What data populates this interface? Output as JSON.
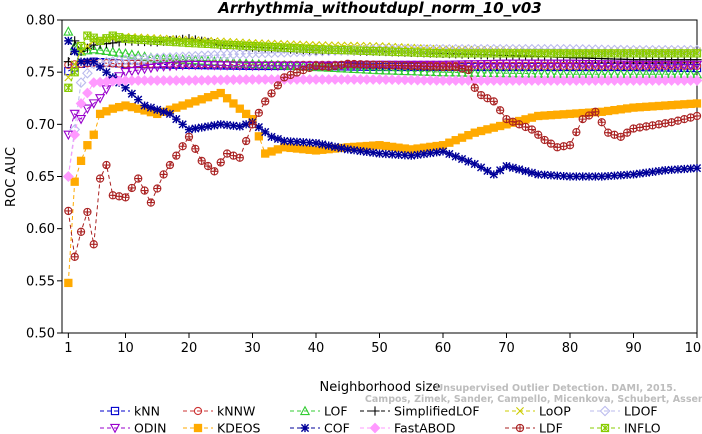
{
  "chart_data": {
    "type": "line",
    "title": "Arrhythmia_withoutdupl_norm_10_v03",
    "xlabel": "Neighborhood size",
    "ylabel": "ROC AUC",
    "xlim": [
      0,
      100
    ],
    "ylim": [
      0.5,
      0.8
    ],
    "xticks": [
      1,
      10,
      20,
      30,
      40,
      50,
      60,
      70,
      80,
      90,
      100
    ],
    "yticks": [
      0.5,
      0.55,
      0.6,
      0.65,
      0.7,
      0.75,
      0.8
    ],
    "ytick_labels": [
      "0.50",
      "0.55",
      "0.60",
      "0.65",
      "0.70",
      "0.75",
      "0.80"
    ],
    "legend_position": "bottom",
    "watermark": [
      "Unsupervised Outlier Detection. DAMI, 2015.",
      "Campos, Zimek, Sander, Campello, Micenkova, Schubert, Assent, Houle"
    ],
    "series": [
      {
        "name": "kNN",
        "color": "#0000cc",
        "marker": "square",
        "x": [
          1,
          3,
          5,
          10,
          20,
          30,
          40,
          50,
          60,
          70,
          80,
          90,
          100
        ],
        "y": [
          0.751,
          0.758,
          0.76,
          0.758,
          0.757,
          0.756,
          0.756,
          0.755,
          0.755,
          0.755,
          0.755,
          0.755,
          0.754
        ]
      },
      {
        "name": "kNNW",
        "color": "#cc3333",
        "marker": "circle",
        "x": [
          1,
          3,
          5,
          10,
          20,
          30,
          40,
          50,
          60,
          70,
          80,
          90,
          100
        ],
        "y": [
          0.757,
          0.758,
          0.759,
          0.758,
          0.758,
          0.757,
          0.757,
          0.757,
          0.756,
          0.756,
          0.756,
          0.756,
          0.756
        ]
      },
      {
        "name": "LOF",
        "color": "#33cc33",
        "marker": "triangle",
        "x": [
          1,
          2,
          3,
          5,
          10,
          15,
          20,
          30,
          40,
          50,
          60,
          70,
          80,
          90,
          100
        ],
        "y": [
          0.789,
          0.775,
          0.77,
          0.772,
          0.768,
          0.763,
          0.762,
          0.758,
          0.755,
          0.752,
          0.75,
          0.749,
          0.748,
          0.748,
          0.748
        ]
      },
      {
        "name": "SimplifiedLOF",
        "color": "#000000",
        "marker": "plus",
        "x": [
          1,
          2,
          3,
          5,
          8,
          10,
          15,
          20,
          25,
          30,
          40,
          50,
          60,
          70,
          80,
          90,
          100
        ],
        "y": [
          0.76,
          0.78,
          0.77,
          0.776,
          0.778,
          0.78,
          0.779,
          0.782,
          0.776,
          0.774,
          0.771,
          0.77,
          0.768,
          0.766,
          0.764,
          0.762,
          0.762
        ]
      },
      {
        "name": "LoOP",
        "color": "#cccc00",
        "marker": "x",
        "x": [
          1,
          3,
          5,
          10,
          20,
          30,
          40,
          50,
          60,
          70,
          80,
          90,
          100
        ],
        "y": [
          0.745,
          0.77,
          0.78,
          0.784,
          0.781,
          0.778,
          0.776,
          0.775,
          0.772,
          0.771,
          0.77,
          0.77,
          0.77
        ]
      },
      {
        "name": "LDOF",
        "color": "#bbbbee",
        "marker": "diamond",
        "x": [
          1,
          3,
          5,
          10,
          20,
          30,
          40,
          50,
          60,
          70,
          80,
          90,
          100
        ],
        "y": [
          0.65,
          0.74,
          0.758,
          0.762,
          0.765,
          0.768,
          0.77,
          0.772,
          0.772,
          0.772,
          0.772,
          0.771,
          0.771
        ]
      },
      {
        "name": "ODIN",
        "color": "#9900cc",
        "marker": "triangle-down",
        "x": [
          1,
          2,
          3,
          4,
          5,
          6,
          8,
          10,
          15,
          20,
          30,
          40,
          50,
          60,
          70,
          80,
          90,
          100
        ],
        "y": [
          0.69,
          0.71,
          0.705,
          0.715,
          0.72,
          0.725,
          0.742,
          0.75,
          0.755,
          0.757,
          0.756,
          0.756,
          0.757,
          0.757,
          0.758,
          0.758,
          0.757,
          0.757
        ]
      },
      {
        "name": "KDEOS",
        "color": "#ffaa00",
        "marker": "square-filled",
        "x": [
          1,
          2,
          3,
          4,
          5,
          6,
          8,
          10,
          12,
          15,
          20,
          25,
          30,
          32,
          35,
          40,
          45,
          50,
          55,
          60,
          65,
          70,
          75,
          80,
          85,
          90,
          95,
          100
        ],
        "y": [
          0.548,
          0.645,
          0.665,
          0.68,
          0.69,
          0.71,
          0.715,
          0.718,
          0.715,
          0.71,
          0.72,
          0.73,
          0.705,
          0.672,
          0.678,
          0.675,
          0.678,
          0.68,
          0.676,
          0.68,
          0.692,
          0.7,
          0.708,
          0.71,
          0.712,
          0.716,
          0.718,
          0.72
        ]
      },
      {
        "name": "COF",
        "color": "#000099",
        "marker": "star",
        "x": [
          1,
          2,
          3,
          5,
          8,
          10,
          13,
          17,
          20,
          25,
          28,
          30,
          33,
          35,
          40,
          45,
          50,
          55,
          60,
          65,
          68,
          70,
          75,
          80,
          85,
          90,
          95,
          100
        ],
        "y": [
          0.78,
          0.77,
          0.76,
          0.76,
          0.745,
          0.735,
          0.718,
          0.71,
          0.695,
          0.7,
          0.698,
          0.702,
          0.688,
          0.684,
          0.682,
          0.676,
          0.672,
          0.67,
          0.674,
          0.662,
          0.652,
          0.66,
          0.652,
          0.65,
          0.65,
          0.652,
          0.656,
          0.658
        ]
      },
      {
        "name": "FastABOD",
        "color": "#ff99ff",
        "marker": "diamond-filled",
        "x": [
          1,
          2,
          3,
          5,
          10,
          20,
          30,
          40,
          50,
          60,
          70,
          80,
          90,
          100
        ],
        "y": [
          0.65,
          0.69,
          0.72,
          0.74,
          0.742,
          0.742,
          0.743,
          0.743,
          0.743,
          0.742,
          0.742,
          0.742,
          0.742,
          0.742
        ]
      },
      {
        "name": "LDF",
        "color": "#aa2222",
        "marker": "circle-plus",
        "x": [
          1,
          2,
          3,
          4,
          5,
          6,
          7,
          8,
          10,
          12,
          14,
          16,
          18,
          20,
          22,
          24,
          26,
          28,
          30,
          32,
          35,
          38,
          40,
          42,
          45,
          50,
          55,
          60,
          62,
          64,
          65,
          66,
          68,
          70,
          72,
          74,
          76,
          78,
          80,
          82,
          84,
          86,
          88,
          90,
          92,
          94,
          96,
          98,
          100
        ],
        "y": [
          0.617,
          0.573,
          0.597,
          0.616,
          0.585,
          0.648,
          0.661,
          0.632,
          0.63,
          0.648,
          0.625,
          0.652,
          0.67,
          0.688,
          0.665,
          0.655,
          0.672,
          0.668,
          0.7,
          0.722,
          0.745,
          0.752,
          0.756,
          0.755,
          0.758,
          0.757,
          0.756,
          0.755,
          0.755,
          0.752,
          0.735,
          0.728,
          0.722,
          0.705,
          0.7,
          0.695,
          0.685,
          0.678,
          0.68,
          0.705,
          0.712,
          0.692,
          0.688,
          0.696,
          0.698,
          0.7,
          0.702,
          0.705,
          0.708
        ]
      },
      {
        "name": "INFLO",
        "color": "#88cc00",
        "marker": "asterisk-box",
        "x": [
          1,
          2,
          3,
          4,
          5,
          6,
          8,
          10,
          15,
          20,
          30,
          40,
          50,
          60,
          70,
          80,
          90,
          100
        ],
        "y": [
          0.735,
          0.75,
          0.775,
          0.785,
          0.783,
          0.78,
          0.785,
          0.782,
          0.78,
          0.778,
          0.775,
          0.772,
          0.77,
          0.768,
          0.768,
          0.768,
          0.768,
          0.768
        ]
      }
    ]
  }
}
